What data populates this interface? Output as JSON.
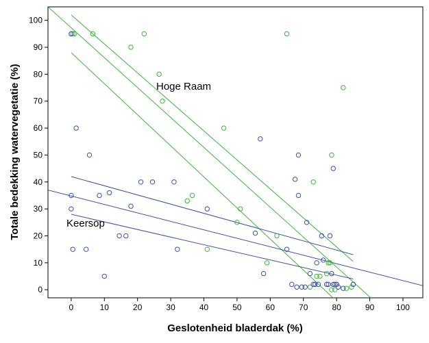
{
  "chart_data": {
    "type": "scatter",
    "title": "",
    "xlabel": "Geslotenheid bladerdak (%)",
    "ylabel": "Totale bedekking watervegetatie (%)",
    "xlim": [
      -7,
      106
    ],
    "ylim": [
      -3,
      105
    ],
    "x_ticks": [
      "0",
      "10",
      "20",
      "30",
      "40",
      "50",
      "60",
      "70",
      "80",
      "90",
      "100"
    ],
    "y_ticks": [
      "0",
      "10",
      "20",
      "30",
      "40",
      "50",
      "60",
      "70",
      "80",
      "90",
      "100"
    ],
    "grid": false,
    "annotations": [
      "Hoge Raam",
      "Keersop"
    ],
    "colors": {
      "Hoge Raam": "#3cb43c",
      "Keersop": "#3c50a5"
    },
    "series": [
      {
        "points": [
          [
            0,
            95
          ],
          [
            0.5,
            95
          ],
          [
            1,
            95
          ],
          [
            6.5,
            95
          ],
          [
            18,
            90
          ],
          [
            22,
            95
          ],
          [
            26.5,
            80
          ],
          [
            27.5,
            70
          ],
          [
            35,
            33
          ],
          [
            36.5,
            35
          ],
          [
            41,
            15
          ],
          [
            46,
            60
          ],
          [
            50,
            25
          ],
          [
            51,
            30
          ],
          [
            59,
            10
          ],
          [
            62,
            20
          ],
          [
            65,
            95
          ],
          [
            72,
            1
          ],
          [
            73,
            40
          ],
          [
            74,
            5
          ],
          [
            75,
            5
          ],
          [
            77,
            6
          ],
          [
            77.5,
            10
          ],
          [
            78,
            10
          ],
          [
            78.5,
            50
          ],
          [
            78.5,
            0
          ],
          [
            79.5,
            0
          ],
          [
            80,
            2
          ],
          [
            82,
            75
          ],
          [
            83,
            0.5
          ],
          [
            84.5,
            1
          ],
          [
            85,
            2
          ]
        ],
        "fit_line": [
          [
            0,
            102
          ],
          [
            85,
            10.5
          ]
        ],
        "ci_upper": [
          [
            0,
            88
          ],
          [
            85,
            -10
          ]
        ],
        "ci_lower": [
          [
            -7,
            105
          ],
          [
            93,
            -6
          ]
        ]
      },
      {
        "points": [
          [
            0,
            95
          ],
          [
            0,
            35
          ],
          [
            0,
            30
          ],
          [
            0.5,
            15
          ],
          [
            1.5,
            60
          ],
          [
            4.5,
            15
          ],
          [
            5.5,
            50
          ],
          [
            8.5,
            35
          ],
          [
            10,
            5
          ],
          [
            11.5,
            36
          ],
          [
            14.5,
            20
          ],
          [
            16.5,
            20
          ],
          [
            18,
            31
          ],
          [
            21,
            40
          ],
          [
            24.5,
            40
          ],
          [
            31,
            40
          ],
          [
            32,
            15
          ],
          [
            41,
            30
          ],
          [
            55.5,
            21
          ],
          [
            57,
            56
          ],
          [
            58,
            6
          ],
          [
            65,
            15
          ],
          [
            66.5,
            2
          ],
          [
            67.5,
            41
          ],
          [
            68,
            1
          ],
          [
            68.5,
            50
          ],
          [
            68.5,
            35
          ],
          [
            69.5,
            1
          ],
          [
            70.5,
            1
          ],
          [
            71,
            25
          ],
          [
            72,
            6
          ],
          [
            73,
            2
          ],
          [
            73.5,
            2
          ],
          [
            74,
            10
          ],
          [
            74.5,
            2
          ],
          [
            75.5,
            20
          ],
          [
            76,
            11
          ],
          [
            77,
            2
          ],
          [
            77.5,
            2
          ],
          [
            78,
            20
          ],
          [
            78.5,
            6
          ],
          [
            79,
            45
          ],
          [
            79,
            2
          ],
          [
            79.5,
            2
          ],
          [
            80,
            2
          ],
          [
            80.5,
            1
          ],
          [
            82,
            0.5
          ],
          [
            85,
            2
          ]
        ],
        "fit_line": [
          [
            -7,
            37
          ],
          [
            106,
            1.5
          ]
        ],
        "ci_upper": [
          [
            0,
            42
          ],
          [
            85,
            13
          ]
        ],
        "ci_lower": [
          [
            0,
            28
          ],
          [
            85,
            4
          ]
        ]
      }
    ]
  }
}
